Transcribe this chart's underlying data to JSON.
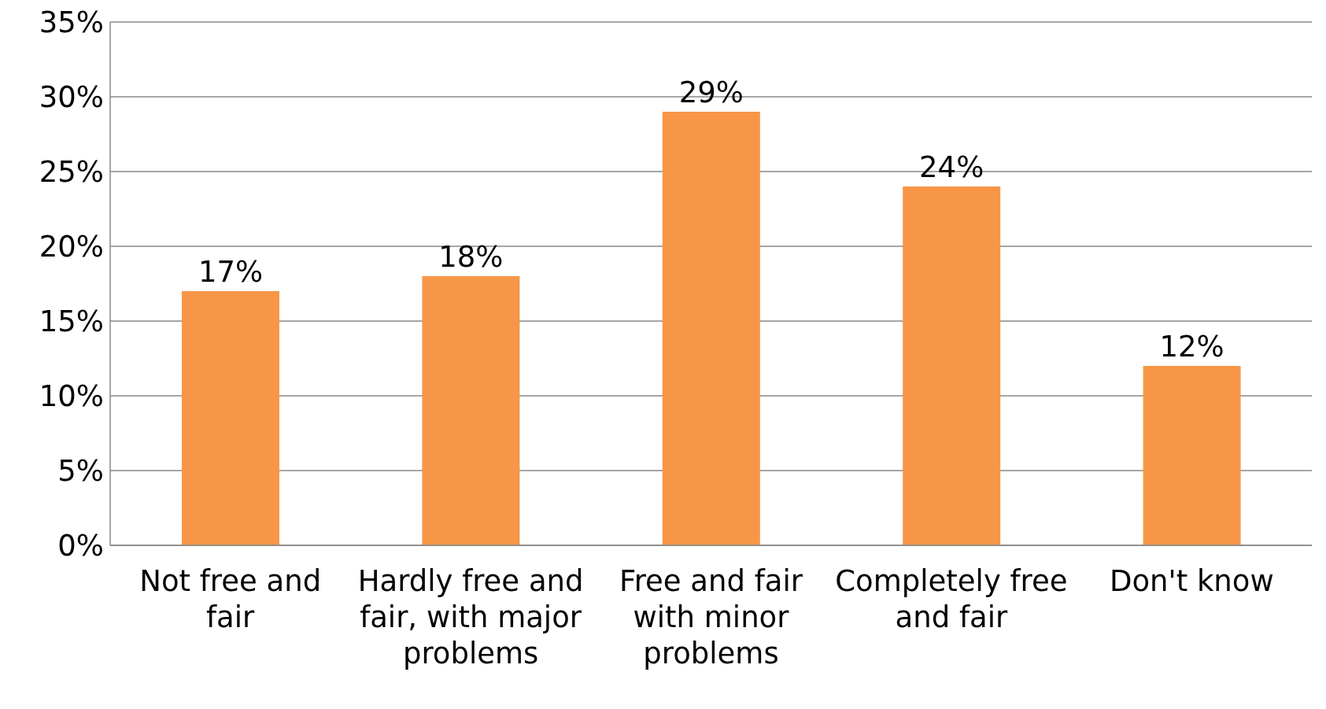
{
  "chart_data": {
    "type": "bar",
    "categories": [
      "Not free and fair",
      "Hardly free and fair, with major problems",
      "Free and fair with minor problems",
      "Completely free and fair",
      "Don't know"
    ],
    "values": [
      17,
      18,
      29,
      24,
      12
    ],
    "value_labels": [
      "17%",
      "18%",
      "29%",
      "24%",
      "12%"
    ],
    "color": "#f79646",
    "ylim": [
      0,
      35
    ],
    "yticks": [
      {
        "value": 0,
        "label": "0%"
      },
      {
        "value": 5,
        "label": "5%"
      },
      {
        "value": 10,
        "label": "10%"
      },
      {
        "value": 15,
        "label": "15%"
      },
      {
        "value": 20,
        "label": "20%"
      },
      {
        "value": 25,
        "label": "25%"
      },
      {
        "value": 30,
        "label": "30%"
      },
      {
        "value": 35,
        "label": "35%"
      }
    ],
    "grid": "y",
    "legend": false
  }
}
